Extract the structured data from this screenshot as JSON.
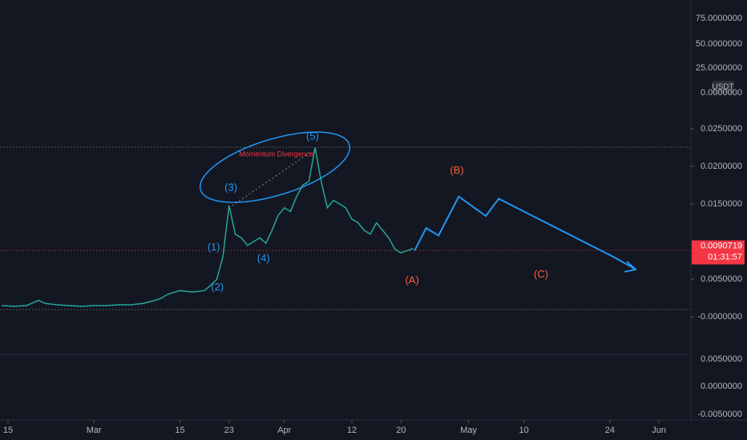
{
  "chart_data": {
    "type": "line",
    "color": "#26a69a",
    "x": [
      -1,
      1,
      3,
      5,
      6,
      8,
      10,
      12,
      14,
      16,
      18,
      20,
      22,
      24,
      25,
      26,
      28,
      30,
      32,
      33,
      34,
      35,
      36,
      37,
      38,
      39,
      40,
      41,
      42,
      43,
      44,
      45,
      46,
      47,
      48,
      49,
      50,
      51,
      52,
      53,
      54,
      55,
      56,
      57,
      58,
      59,
      60,
      61,
      62,
      63,
      64,
      65,
      66
    ],
    "values": [
      0.0015,
      0.0014,
      0.0015,
      0.0022,
      0.0018,
      0.0016,
      0.0015,
      0.0014,
      0.0015,
      0.0015,
      0.0016,
      0.0016,
      0.0018,
      0.0022,
      0.0025,
      0.003,
      0.0035,
      0.0033,
      0.0035,
      0.0042,
      0.005,
      0.008,
      0.0148,
      0.011,
      0.0105,
      0.0095,
      0.01,
      0.0105,
      0.0098,
      0.0115,
      0.0135,
      0.0145,
      0.014,
      0.016,
      0.0175,
      0.018,
      0.0225,
      0.018,
      0.0145,
      0.0155,
      0.015,
      0.0145,
      0.013,
      0.0125,
      0.0115,
      0.011,
      0.0125,
      0.0115,
      0.0105,
      0.009,
      0.0085,
      0.0088,
      0.0091
    ],
    "projection": {
      "color": "#2196f3",
      "x": [
        66.2,
        68.1,
        70.1,
        73.4,
        77.8,
        79.9,
        99.0,
        102.2
      ],
      "values": [
        0.0088,
        0.0118,
        0.0108,
        0.016,
        0.0134,
        0.0157,
        0.0078,
        0.0063
      ]
    },
    "annotations": [
      {
        "text": "(1)",
        "x": 33.5,
        "y": 0.0092,
        "color": "#2196f3"
      },
      {
        "text": "(2)",
        "x": 34.1,
        "y": 0.0039,
        "color": "#2196f3"
      },
      {
        "text": "(3)",
        "x": 36.3,
        "y": 0.0171,
        "color": "#2196f3"
      },
      {
        "text": "(4)",
        "x": 41.6,
        "y": 0.0077,
        "color": "#2196f3"
      },
      {
        "text": "(5)",
        "x": 49.6,
        "y": 0.0239,
        "color": "#2196f3"
      },
      {
        "text": "(A)",
        "x": 65.8,
        "y": 0.0048,
        "color": "#ff5e3a"
      },
      {
        "text": "(B)",
        "x": 73.1,
        "y": 0.0194,
        "color": "#ff5e3a"
      },
      {
        "text": "(C)",
        "x": 86.8,
        "y": 0.0056,
        "color": "#ff5e3a"
      },
      {
        "text": "Momentum Divergence",
        "x": 43.7,
        "y": 0.0216,
        "color": "#f23645"
      }
    ],
    "xlim": [
      -1.3,
      111.2
    ],
    "ylim": [
      -0.0137,
      0.0421
    ],
    "xticks": [
      {
        "value": 0,
        "label": "15"
      },
      {
        "value": 14,
        "label": "Mar"
      },
      {
        "value": 28,
        "label": "15"
      },
      {
        "value": 36,
        "label": "23"
      },
      {
        "value": 45,
        "label": "Apr"
      },
      {
        "value": 56,
        "label": "12"
      },
      {
        "value": 64,
        "label": "20"
      },
      {
        "value": 75,
        "label": "May"
      },
      {
        "value": 84,
        "label": "10"
      },
      {
        "value": 98,
        "label": "24"
      },
      {
        "value": 106,
        "label": "Jun"
      }
    ],
    "yticks": [
      {
        "value": 0.025,
        "label": "0.0250000"
      },
      {
        "value": 0.02,
        "label": "0.0200000"
      },
      {
        "value": 0.015,
        "label": "0.0150000"
      },
      {
        "value": 0.005,
        "label": "0.0050000"
      },
      {
        "value": 0,
        "label": "-0.0000000"
      }
    ],
    "upper_scale_labels": [
      "75.0000000",
      "50.0000000",
      "25.0000000",
      "0.0000000"
    ],
    "lower_scale_labels": [
      "0.0050000",
      "0.0000000",
      "-0.0050000"
    ],
    "currency": "USDT",
    "last_price_label": "0.0090719",
    "countdown": "01:31:57"
  }
}
